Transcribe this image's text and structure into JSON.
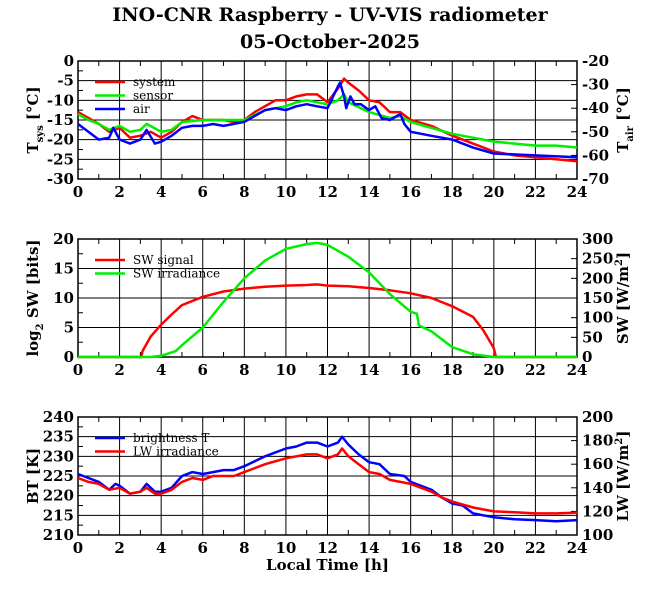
{
  "title": "INO-CNR Raspberry - UV-VIS radiometer",
  "subtitle": "05-October-2025",
  "colors": {
    "red": "#ff0000",
    "green": "#00ee00",
    "blue": "#0000ff"
  },
  "chart_data": [
    {
      "type": "line",
      "xlim": [
        0,
        24
      ],
      "xticks": [
        0,
        2,
        4,
        6,
        8,
        10,
        12,
        14,
        16,
        18,
        20,
        22,
        24
      ],
      "ylabel": "T",
      "ylabel_sub": "sys",
      "ylabel_unit": "[°C]",
      "ylim": [
        -30,
        0
      ],
      "yticks": [
        0,
        -5,
        -10,
        -15,
        -20,
        -25,
        -30
      ],
      "y2label": "T",
      "y2label_sub": "air",
      "y2label_unit": "[°C]",
      "y2lim": [
        -70,
        -20
      ],
      "y2ticks": [
        -20,
        -30,
        -40,
        -50,
        -60,
        -70
      ],
      "grid": true,
      "legend": "top-left",
      "series": [
        {
          "name": "system",
          "color": "#ff0000",
          "axis": "left",
          "x": [
            0,
            0.5,
            1,
            1.5,
            2,
            2.5,
            3,
            3.5,
            4,
            4.5,
            5,
            5.5,
            6,
            6.5,
            7,
            7.5,
            8,
            8.5,
            9,
            9.5,
            10,
            10.5,
            11,
            11.5,
            12,
            12.5,
            12.8,
            13,
            13.5,
            14,
            14.5,
            15,
            15.5,
            16,
            17,
            18,
            19,
            20,
            21,
            22,
            23,
            24
          ],
          "y": [
            -13,
            -14.5,
            -16,
            -18,
            -17,
            -19.5,
            -19,
            -18,
            -19.5,
            -18,
            -15.5,
            -14,
            -15,
            -15,
            -15,
            -15.5,
            -15,
            -13,
            -11.5,
            -10,
            -10,
            -9,
            -8.5,
            -8.5,
            -10.5,
            -7,
            -4.5,
            -5.5,
            -7.5,
            -10,
            -10.5,
            -13,
            -13,
            -15,
            -16.5,
            -19,
            -21,
            -23,
            -24,
            -24.5,
            -25,
            -25.5
          ]
        },
        {
          "name": "sensor",
          "color": "#00ee00",
          "axis": "left",
          "x": [
            0,
            0.5,
            1,
            1.5,
            2,
            2.5,
            3,
            3.3,
            4,
            4.5,
            5,
            6,
            7,
            8,
            9,
            10,
            10.5,
            11,
            11.5,
            12,
            12.5,
            12.8,
            13,
            14,
            15,
            15.5,
            16,
            17,
            18,
            19,
            20,
            21,
            22,
            23,
            24
          ],
          "y": [
            -13.5,
            -15,
            -16,
            -17.5,
            -16.5,
            -18,
            -17.5,
            -16,
            -18,
            -17.5,
            -15.5,
            -15,
            -15,
            -15,
            -12.5,
            -11.5,
            -10.5,
            -10,
            -10.5,
            -11,
            -10,
            -8.5,
            -10.5,
            -13,
            -14.5,
            -14,
            -15.5,
            -17,
            -18.5,
            -19.5,
            -20.5,
            -21,
            -21.5,
            -21.5,
            -22
          ]
        },
        {
          "name": "air",
          "color": "#0000ff",
          "axis": "right",
          "x": [
            0,
            0.5,
            1,
            1.5,
            1.7,
            2,
            2.5,
            3,
            3.3,
            3.7,
            4,
            4.5,
            5,
            5.5,
            6,
            6.5,
            7,
            8,
            9,
            9.5,
            10,
            10.5,
            11,
            11.5,
            12,
            12.5,
            12.6,
            12.8,
            12.9,
            13.1,
            13.3,
            13.6,
            14,
            14.3,
            14.6,
            15,
            15.5,
            15.7,
            16,
            17,
            18,
            19,
            20,
            22,
            24
          ],
          "y": [
            -46.7,
            -50,
            -53.3,
            -52.5,
            -48.3,
            -53.3,
            -55,
            -53.3,
            -49.2,
            -55,
            -54.2,
            -51.7,
            -48.3,
            -47.5,
            -47.5,
            -46.7,
            -47.5,
            -45.8,
            -40.8,
            -40,
            -40.8,
            -39.2,
            -38.3,
            -39.2,
            -40,
            -30.8,
            -29.2,
            -35,
            -40,
            -35,
            -38.3,
            -38.3,
            -40.8,
            -39.2,
            -44.2,
            -45,
            -42.5,
            -46.7,
            -50,
            -51.7,
            -53.3,
            -56.7,
            -59.2,
            -60,
            -60.8
          ]
        }
      ]
    },
    {
      "type": "line",
      "xlim": [
        0,
        24
      ],
      "xticks": [
        0,
        2,
        4,
        6,
        8,
        10,
        12,
        14,
        16,
        18,
        20,
        22,
        24
      ],
      "ylabel": "log",
      "ylabel_sub": "2",
      "ylabel_unit": "SW [bits]",
      "ylim": [
        0,
        20
      ],
      "yticks": [
        0,
        5,
        10,
        15,
        20
      ],
      "y2label": "SW [W/m",
      "y2label_sup": "2",
      "y2label_end": "]",
      "y2lim": [
        0,
        300
      ],
      "y2ticks": [
        0,
        50,
        100,
        150,
        200,
        250,
        300
      ],
      "grid": true,
      "legend": "top-left",
      "series": [
        {
          "name": "SW signal",
          "color": "#ff0000",
          "axis": "left",
          "x": [
            0,
            3.05,
            3.1,
            3.5,
            4,
            4.5,
            5,
            6,
            7,
            8,
            9,
            10,
            11,
            11.5,
            12,
            13,
            14,
            15,
            16,
            17,
            18,
            19,
            19.5,
            20,
            20.1,
            24
          ],
          "y": [
            0,
            0,
            1,
            3.5,
            5.5,
            7.2,
            8.8,
            10.2,
            11.1,
            11.6,
            11.9,
            12.1,
            12.2,
            12.3,
            12.1,
            12,
            11.7,
            11.3,
            10.8,
            10,
            8.6,
            6.8,
            4.5,
            1.5,
            0,
            0
          ]
        },
        {
          "name": "SW irradiance",
          "color": "#00ee00",
          "axis": "right",
          "x": [
            0,
            3.5,
            4,
            4.7,
            5,
            6,
            7,
            8,
            9,
            10,
            11,
            11.5,
            12,
            13,
            14,
            15,
            16,
            16.3,
            16.4,
            17,
            18,
            19,
            20,
            24
          ],
          "y": [
            0,
            0,
            3,
            15,
            30,
            75,
            140,
            200,
            245,
            275,
            287,
            290,
            285,
            255,
            215,
            160,
            115,
            110,
            80,
            65,
            25,
            7,
            0,
            0
          ]
        }
      ]
    },
    {
      "type": "line",
      "xlim": [
        0,
        24
      ],
      "xticks": [
        0,
        2,
        4,
        6,
        8,
        10,
        12,
        14,
        16,
        18,
        20,
        22,
        24
      ],
      "xlabel": "Local Time [h]",
      "ylabel": "BT [K]",
      "ylim": [
        210,
        240
      ],
      "yticks": [
        210,
        215,
        220,
        225,
        230,
        235,
        240
      ],
      "y2label": "LW [W/m",
      "y2label_sup": "2",
      "y2label_end": "]",
      "y2lim": [
        100,
        200
      ],
      "y2ticks": [
        100,
        120,
        140,
        160,
        180,
        200
      ],
      "grid": true,
      "legend": "top-left",
      "series": [
        {
          "name": "brightness T",
          "color": "#0000ff",
          "axis": "left",
          "x": [
            0,
            0.5,
            1,
            1.5,
            1.8,
            2,
            2.5,
            3,
            3.3,
            3.7,
            4,
            4.5,
            5,
            5.5,
            6,
            6.5,
            7,
            7.5,
            8,
            9,
            10,
            10.5,
            11,
            11.5,
            12,
            12.5,
            12.7,
            13,
            13.5,
            14,
            14.5,
            15,
            15.7,
            16,
            17,
            17.5,
            18,
            18.5,
            19,
            20,
            21,
            22,
            23,
            24
          ],
          "y": [
            225.5,
            224.5,
            223.5,
            221.5,
            223,
            222.5,
            220.5,
            221,
            223,
            221,
            221,
            222,
            225,
            226,
            225.5,
            226,
            226.5,
            226.5,
            227.5,
            230,
            232,
            232.5,
            233.5,
            233.5,
            232.5,
            233.5,
            235,
            233,
            230.5,
            228.5,
            228,
            225.5,
            225,
            223.5,
            221.5,
            219.5,
            218,
            217.5,
            215.5,
            214.5,
            214,
            213.8,
            213.5,
            213.8
          ]
        },
        {
          "name": "LW irradiance",
          "color": "#ff0000",
          "axis": "right",
          "x": [
            0,
            0.5,
            1,
            1.5,
            2,
            2.5,
            3,
            3.3,
            3.7,
            4,
            4.5,
            5,
            5.5,
            6,
            6.5,
            7,
            7.5,
            8,
            9,
            10,
            11,
            11.5,
            12,
            12.5,
            12.7,
            13,
            13.5,
            14,
            14.5,
            15,
            16,
            17,
            17.5,
            18,
            19,
            20,
            21,
            22,
            23,
            24
          ],
          "y": [
            148.3,
            145,
            143.3,
            138.3,
            140,
            135,
            136.7,
            140,
            135,
            135,
            138.3,
            145,
            148.3,
            146.7,
            150,
            150,
            150,
            153.3,
            160,
            165,
            168.3,
            168.3,
            165,
            168.3,
            173.3,
            166.7,
            160,
            153.3,
            151.7,
            146.7,
            143.3,
            136.7,
            131.7,
            128.3,
            123.3,
            120,
            119.3,
            118.3,
            118.3,
            119
          ]
        }
      ]
    }
  ]
}
